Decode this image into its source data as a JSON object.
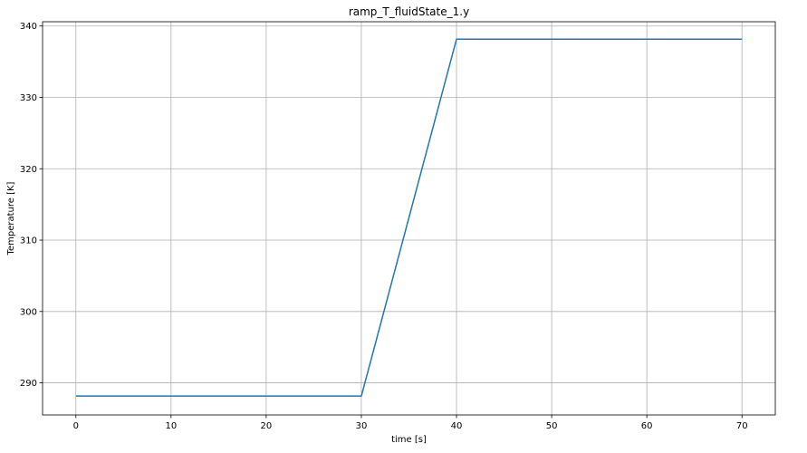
{
  "chart_data": {
    "type": "line",
    "title": "ramp_T_fluidState_1.y",
    "xlabel": "time [s]",
    "ylabel": "Temperature [K]",
    "xlim": [
      -3.5,
      73.5
    ],
    "ylim": [
      285.5,
      340.6
    ],
    "xticks": [
      0,
      10,
      20,
      30,
      40,
      50,
      60,
      70
    ],
    "yticks": [
      290,
      300,
      310,
      320,
      330,
      340
    ],
    "grid": true,
    "series": [
      {
        "x": [
          0,
          30,
          40,
          70
        ],
        "y": [
          288.15,
          288.15,
          338.15,
          338.15
        ],
        "color": "#1f77b4"
      }
    ]
  },
  "colors": {
    "line": "#1f77b4",
    "grid": "#b0b0b0",
    "axes": "#000000",
    "background": "#ffffff"
  }
}
